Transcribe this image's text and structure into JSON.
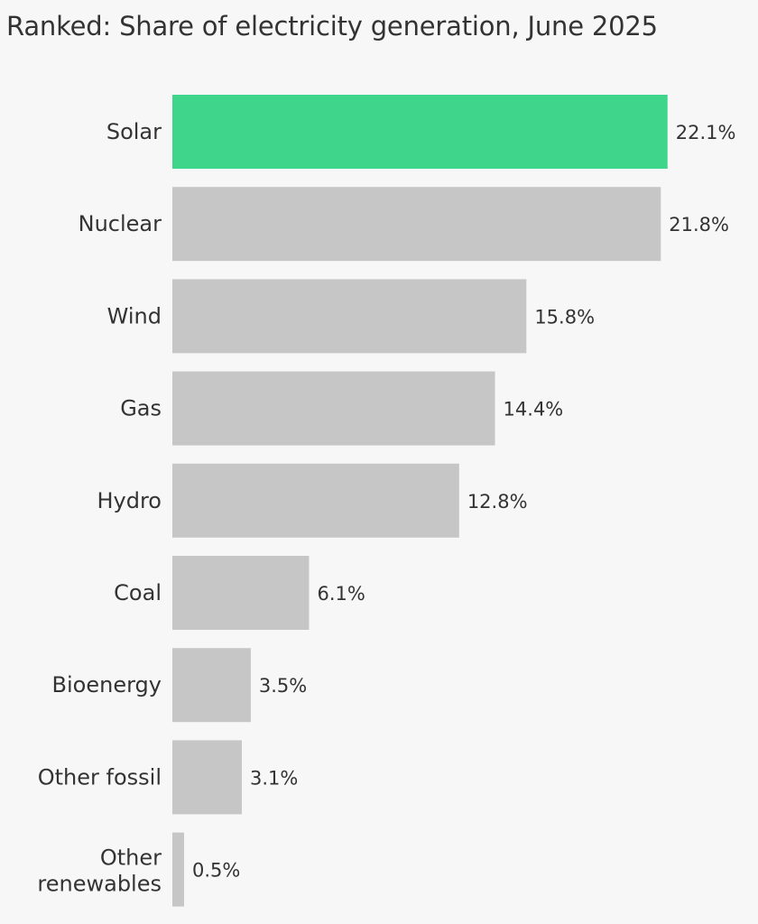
{
  "chart_data": {
    "type": "bar",
    "orientation": "horizontal",
    "title": "Ranked: Share of electricity generation, June 2025",
    "categories": [
      "Solar",
      "Nuclear",
      "Wind",
      "Gas",
      "Hydro",
      "Coal",
      "Bioenergy",
      "Other fossil",
      "Other renewables"
    ],
    "values": [
      22.1,
      21.8,
      15.8,
      14.4,
      12.8,
      6.1,
      3.5,
      3.1,
      0.5
    ],
    "value_labels": [
      "22.1%",
      "21.8%",
      "15.8%",
      "14.4%",
      "12.8%",
      "6.1%",
      "3.5%",
      "3.1%",
      "0.5%"
    ],
    "unit": "%",
    "highlight_category": "Solar",
    "colors": {
      "highlight": "#3fd68c",
      "default": "#c6c6c6",
      "background": "#f7f7f7",
      "text": "#333333"
    },
    "grid": false,
    "legend": "none"
  }
}
